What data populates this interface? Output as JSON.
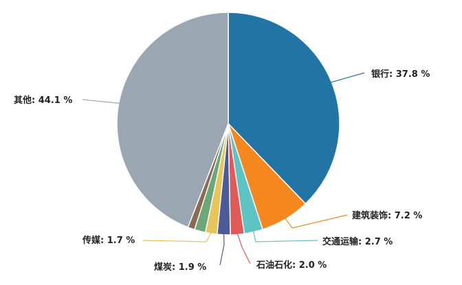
{
  "chart_data": {
    "type": "pie",
    "title": "",
    "start_angle_deg": 0,
    "direction": "clockwise",
    "slices": [
      {
        "label": "银行",
        "value": 37.8,
        "text": "银行: 37.8 %",
        "color": "#2274a5"
      },
      {
        "label": "建筑装饰",
        "value": 7.2,
        "text": "建筑装饰: 7.2 %",
        "color": "#f5871f"
      },
      {
        "label": "交通运输",
        "value": 2.7,
        "text": "交通运输: 2.7 %",
        "color": "#5ec3c3"
      },
      {
        "label": "石油石化",
        "value": 2.0,
        "text": "石油石化: 2.0 %",
        "color": "#e05a5a"
      },
      {
        "label": "煤炭",
        "value": 1.9,
        "text": "煤炭: 1.9 %",
        "color": "#4a5a9a"
      },
      {
        "label": "传媒",
        "value": 1.7,
        "text": "传媒: 1.7 %",
        "color": "#e8c55a"
      },
      {
        "label": "",
        "value": 1.6,
        "text": "",
        "color": "#6aa87a"
      },
      {
        "label": "",
        "value": 1.0,
        "text": "",
        "color": "#8a6a52"
      },
      {
        "label": "其他",
        "value": 44.1,
        "text": "其他: 44.1 %",
        "color": "#9aa6b2"
      }
    ]
  }
}
